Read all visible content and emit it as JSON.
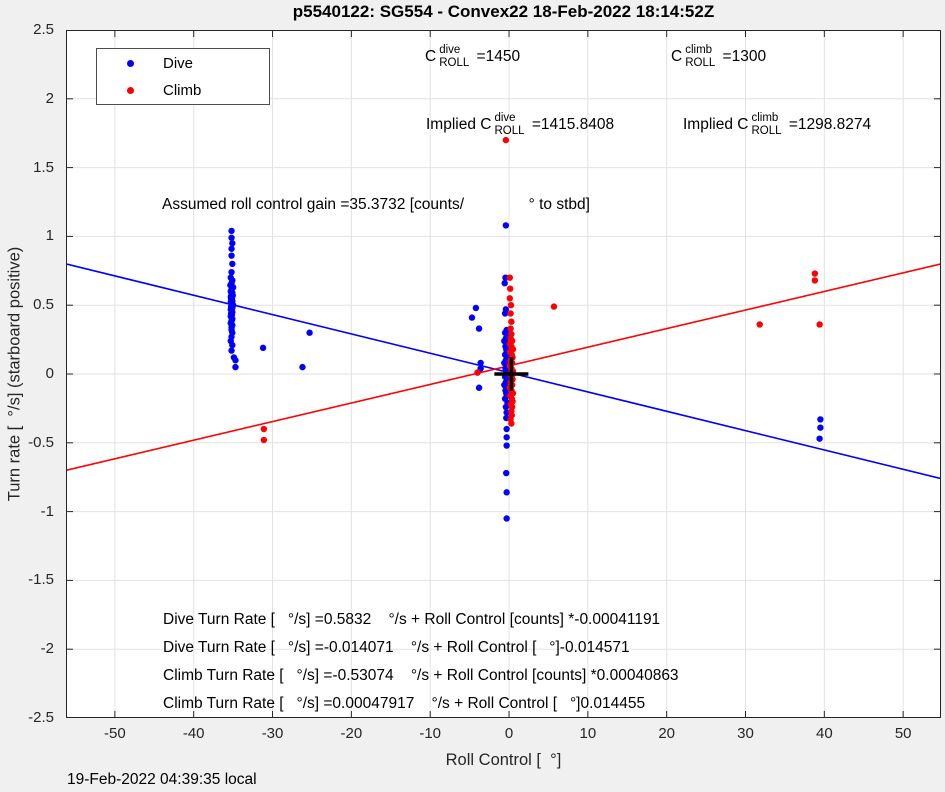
{
  "figure": {
    "title": "p5540122: SG554 - Convex22 18-Feb-2022 18:14:52Z",
    "timestamp": "19-Feb-2022 04:39:35 local",
    "bg_color": "#f0f0f0",
    "axes_color": "#262626",
    "grid_color": "#e2e2e2"
  },
  "legend": {
    "items": [
      {
        "label": "Dive",
        "color": "#0000ff"
      },
      {
        "label": "Climb",
        "color": "#ff0000"
      }
    ]
  },
  "annotations": {
    "c_dive": {
      "pre": "C",
      "sup": "dive",
      "sub": "ROLL",
      "post": " =1450"
    },
    "c_climb": {
      "pre": "C",
      "sup": "climb",
      "sub": "ROLL",
      "post": " =1300"
    },
    "implied_dive": {
      "pre": "Implied C",
      "sup": "dive",
      "sub": "ROLL",
      "post": " =1415.8408"
    },
    "implied_climb": {
      "pre": "Implied C",
      "sup": "climb",
      "sub": "ROLL",
      "post": " =1298.8274"
    },
    "assumed_gain": "Assumed roll control gain =35.3732 [counts/               ° to stbd]",
    "eq_lines": [
      "Dive Turn Rate [   °/s] =0.5832    °/s + Roll Control [counts] *-0.00041191",
      "Dive Turn Rate [   °/s] =-0.014071    °/s + Roll Control [   °]-0.014571",
      "Climb Turn Rate [   °/s] =-0.53074    °/s + Roll Control [counts] *0.00040863",
      "Climb Turn Rate [   °/s] =0.00047917    °/s + Roll Control [   °]0.014455"
    ]
  },
  "chart_data": {
    "type": "scatter",
    "title": "p5540122: SG554 - Convex22 18-Feb-2022 18:14:52Z",
    "xlabel": "Roll Control [  °]",
    "ylabel": "Turn rate [  °/s] (starboard positive)",
    "xlim": [
      -56.2,
      54.8
    ],
    "ylim": [
      -2.5,
      2.5
    ],
    "grid": true,
    "xticks": [
      -50,
      -40,
      -30,
      -20,
      -10,
      0,
      10,
      20,
      30,
      40,
      50
    ],
    "xtick_labels": [
      "-50",
      "-40",
      "-30",
      "-20",
      "-10",
      "0",
      "10",
      "20",
      "30",
      "40",
      "50"
    ],
    "yticks": [
      -2.5,
      -2,
      -1.5,
      -1,
      -0.5,
      0,
      0.5,
      1,
      1.5,
      2,
      2.5
    ],
    "ytick_labels": [
      "-2.5",
      "-2",
      "-1.5",
      "-1",
      "-0.5",
      "0",
      "0.5",
      "1",
      "1.5",
      "2",
      "2.5"
    ],
    "legend_position": "top-left-inside",
    "series": [
      {
        "name": "Dive",
        "color": "#0000ff",
        "points": [
          [
            -35.2,
            1.04
          ],
          [
            -35.2,
            0.99
          ],
          [
            -35.1,
            0.95
          ],
          [
            -35.2,
            0.91
          ],
          [
            -35.2,
            0.86
          ],
          [
            -35.1,
            0.8
          ],
          [
            -35.2,
            0.74
          ],
          [
            -35.3,
            0.7
          ],
          [
            -35.1,
            0.68
          ],
          [
            -35.2,
            0.66
          ],
          [
            -35.35,
            0.645
          ],
          [
            -35.0,
            0.63
          ],
          [
            -35.2,
            0.615
          ],
          [
            -35.3,
            0.6
          ],
          [
            -35.1,
            0.59
          ],
          [
            -35.2,
            0.58
          ],
          [
            -35.05,
            0.57
          ],
          [
            -35.3,
            0.56
          ],
          [
            -35.15,
            0.55
          ],
          [
            -35.25,
            0.54
          ],
          [
            -35.1,
            0.53
          ],
          [
            -35.3,
            0.52
          ],
          [
            -35.2,
            0.51
          ],
          [
            -35.0,
            0.5
          ],
          [
            -35.25,
            0.49
          ],
          [
            -35.1,
            0.48
          ],
          [
            -35.3,
            0.47
          ],
          [
            -35.2,
            0.46
          ],
          [
            -35.1,
            0.45
          ],
          [
            -35.25,
            0.44
          ],
          [
            -35.15,
            0.43
          ],
          [
            -35.3,
            0.42
          ],
          [
            -35.2,
            0.41
          ],
          [
            -35.1,
            0.4
          ],
          [
            -35.2,
            0.385
          ],
          [
            -35.3,
            0.37
          ],
          [
            -35.1,
            0.355
          ],
          [
            -35.2,
            0.34
          ],
          [
            -35.2,
            0.32
          ],
          [
            -35.1,
            0.3
          ],
          [
            -35.2,
            0.27
          ],
          [
            -35.3,
            0.24
          ],
          [
            -35.1,
            0.21
          ],
          [
            -35.2,
            0.17
          ],
          [
            -34.9,
            0.12
          ],
          [
            -34.7,
            0.1
          ],
          [
            -34.7,
            0.05
          ],
          [
            -31.2,
            0.19
          ],
          [
            -26.2,
            0.05
          ],
          [
            -25.3,
            0.3
          ],
          [
            -0.4,
            1.08
          ],
          [
            -0.45,
            0.7
          ],
          [
            -0.55,
            0.66
          ],
          [
            -0.4,
            0.47
          ],
          [
            -0.5,
            0.44
          ],
          [
            -0.3,
            0.32
          ],
          [
            -0.5,
            0.3
          ],
          [
            -0.2,
            0.28
          ],
          [
            -0.4,
            0.26
          ],
          [
            -0.6,
            0.24
          ],
          [
            -0.25,
            0.22
          ],
          [
            -0.45,
            0.2
          ],
          [
            -0.35,
            0.18
          ],
          [
            -0.3,
            0.16
          ],
          [
            -0.5,
            0.14
          ],
          [
            -0.2,
            0.12
          ],
          [
            -0.4,
            0.1
          ],
          [
            -0.6,
            0.08
          ],
          [
            -0.25,
            0.06
          ],
          [
            -0.45,
            0.04
          ],
          [
            -0.35,
            0.02
          ],
          [
            -0.3,
            0.0
          ],
          [
            -0.5,
            -0.02
          ],
          [
            -0.2,
            -0.04
          ],
          [
            -0.4,
            -0.06
          ],
          [
            -0.6,
            -0.08
          ],
          [
            -0.25,
            -0.1
          ],
          [
            -0.45,
            -0.12
          ],
          [
            -0.35,
            -0.14
          ],
          [
            -0.3,
            -0.16
          ],
          [
            -0.5,
            -0.18
          ],
          [
            -0.2,
            -0.21
          ],
          [
            -0.4,
            -0.24
          ],
          [
            -0.3,
            -0.28
          ],
          [
            -0.35,
            -0.32
          ],
          [
            -0.3,
            -0.4
          ],
          [
            -0.3,
            -0.46
          ],
          [
            -0.3,
            -0.52
          ],
          [
            -0.35,
            -0.72
          ],
          [
            -0.3,
            -0.86
          ],
          [
            -0.3,
            -1.05
          ],
          [
            -4.2,
            0.48
          ],
          [
            -4.7,
            0.41
          ],
          [
            -3.8,
            0.33
          ],
          [
            -3.6,
            0.08
          ],
          [
            -3.6,
            0.04
          ],
          [
            -3.8,
            -0.1
          ],
          [
            39.5,
            -0.33
          ],
          [
            39.5,
            -0.39
          ],
          [
            39.4,
            -0.47
          ]
        ]
      },
      {
        "name": "Climb",
        "color": "#ff0000",
        "points": [
          [
            -0.4,
            1.7
          ],
          [
            0.1,
            0.7
          ],
          [
            0.15,
            0.62
          ],
          [
            0.1,
            0.55
          ],
          [
            0.25,
            0.5
          ],
          [
            0.2,
            0.44
          ],
          [
            0.3,
            0.38
          ],
          [
            0.2,
            0.33
          ],
          [
            0.3,
            0.29
          ],
          [
            0.2,
            0.26
          ],
          [
            0.4,
            0.24
          ],
          [
            0.1,
            0.22
          ],
          [
            0.3,
            0.2
          ],
          [
            0.5,
            0.18
          ],
          [
            0.15,
            0.16
          ],
          [
            0.35,
            0.14
          ],
          [
            0.45,
            0.12
          ],
          [
            0.2,
            0.1
          ],
          [
            0.4,
            0.08
          ],
          [
            0.1,
            0.06
          ],
          [
            0.3,
            0.04
          ],
          [
            0.5,
            0.02
          ],
          [
            0.15,
            0.0
          ],
          [
            0.35,
            -0.02
          ],
          [
            0.45,
            -0.04
          ],
          [
            0.2,
            -0.06
          ],
          [
            0.4,
            -0.08
          ],
          [
            0.1,
            -0.1
          ],
          [
            0.3,
            -0.12
          ],
          [
            0.5,
            -0.14
          ],
          [
            0.15,
            -0.16
          ],
          [
            0.35,
            -0.18
          ],
          [
            0.45,
            -0.2
          ],
          [
            0.2,
            -0.22
          ],
          [
            0.4,
            -0.24
          ],
          [
            0.3,
            -0.27
          ],
          [
            0.35,
            -0.3
          ],
          [
            0.2,
            -0.33
          ],
          [
            0.3,
            -0.36
          ],
          [
            5.7,
            0.49
          ],
          [
            -4.0,
            0.01
          ],
          [
            -31.1,
            -0.4
          ],
          [
            -31.1,
            -0.48
          ],
          [
            31.8,
            0.36
          ],
          [
            39.4,
            0.36
          ],
          [
            38.8,
            0.73
          ],
          [
            38.8,
            0.68
          ]
        ]
      }
    ],
    "fit_lines": [
      {
        "name": "dive-fit",
        "color": "#0000ff",
        "x1": -56.2,
        "y1": 0.8,
        "x2": 54.8,
        "y2": -0.76
      },
      {
        "name": "climb-fit",
        "color": "#ff0000",
        "x1": -56.2,
        "y1": -0.7,
        "x2": 54.8,
        "y2": 0.8
      }
    ],
    "markers": [
      {
        "name": "origin-cross",
        "shape": "plus",
        "x": 0.3,
        "y": 0.0,
        "color": "#000000"
      }
    ]
  }
}
